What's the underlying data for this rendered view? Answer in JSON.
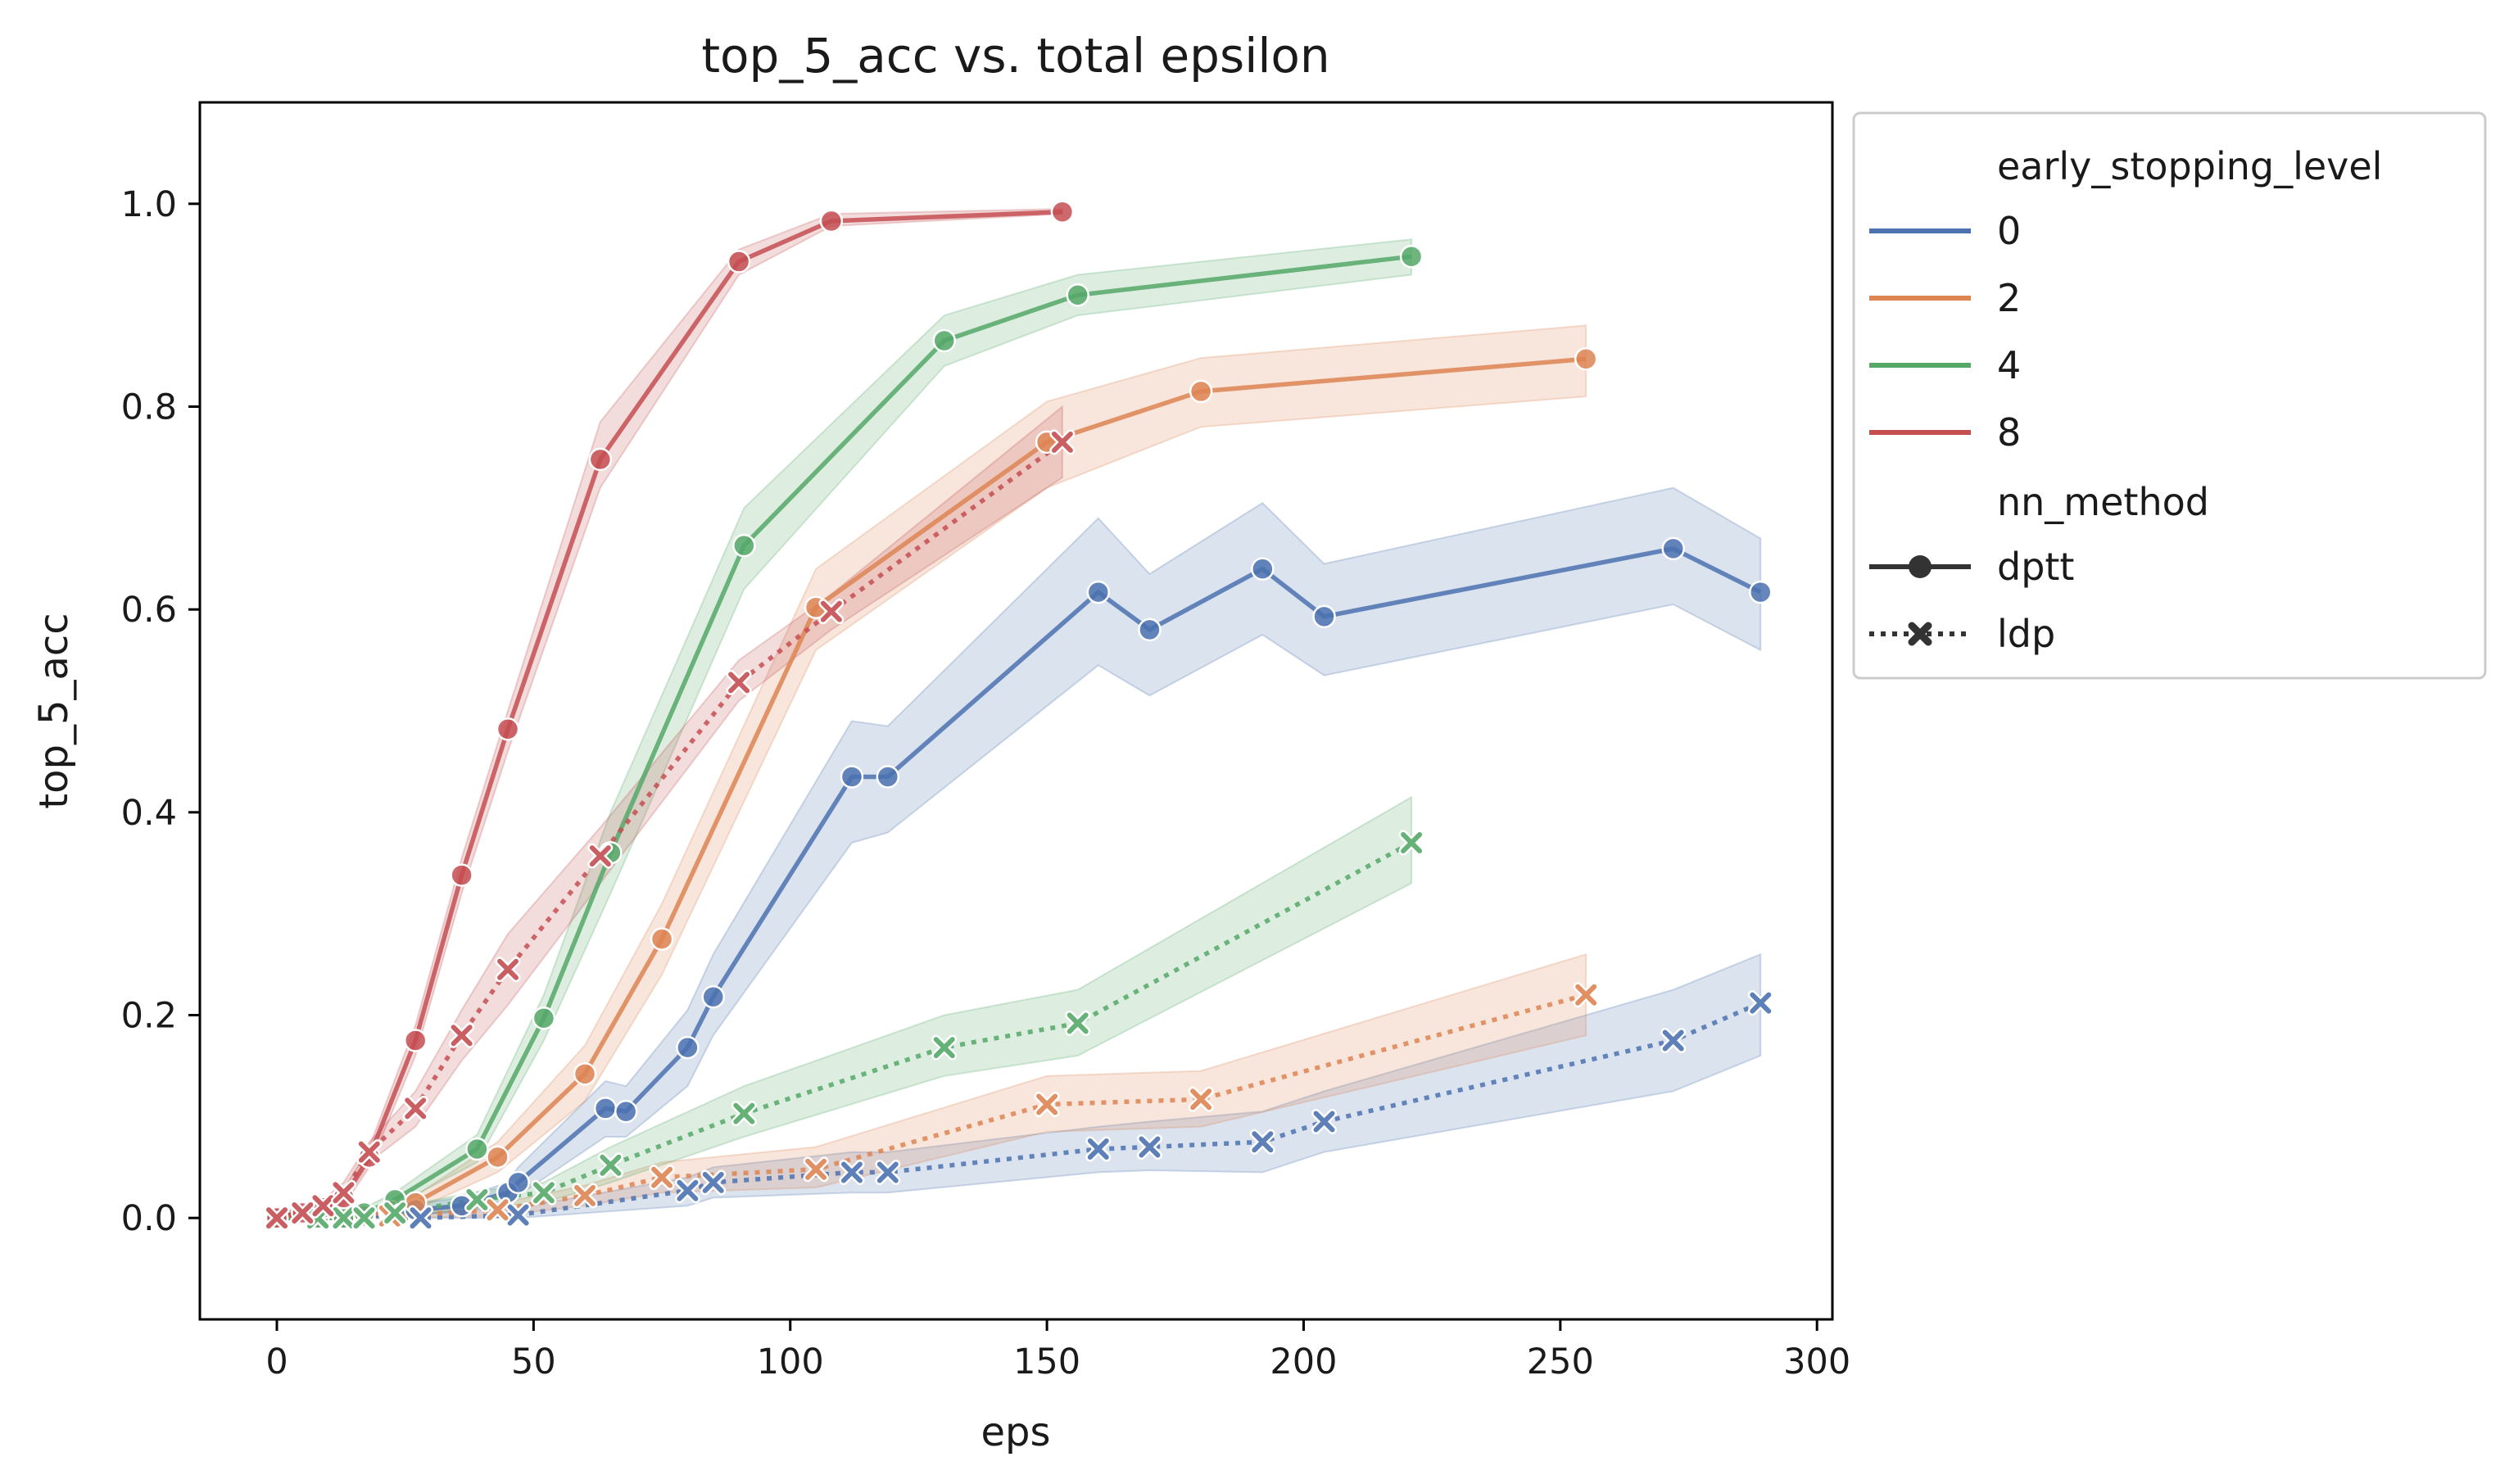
{
  "chart_data": {
    "type": "line",
    "title": "top_5_acc vs. total epsilon",
    "xlabel": "eps",
    "ylabel": "top_5_acc",
    "xlim": [
      -15,
      303
    ],
    "ylim": [
      -0.1,
      1.1
    ],
    "xticks": [
      0,
      50,
      100,
      150,
      200,
      250,
      300
    ],
    "yticks": [
      0.0,
      0.2,
      0.4,
      0.6,
      0.8,
      1.0
    ],
    "xtick_labels": [
      "0",
      "50",
      "100",
      "150",
      "200",
      "250",
      "300"
    ],
    "ytick_labels": [
      "0.0",
      "0.2",
      "0.4",
      "0.6",
      "0.8",
      "1.0"
    ],
    "grid": false,
    "legend": {
      "placement": "outside-right-top",
      "hue_title": "early_stopping_level",
      "hue_levels": [
        {
          "label": "0",
          "color": "#4c72b0"
        },
        {
          "label": "2",
          "color": "#dd8452"
        },
        {
          "label": "4",
          "color": "#55a868"
        },
        {
          "label": "8",
          "color": "#c44e52"
        }
      ],
      "style_title": "nn_method",
      "styles": [
        {
          "label": "dptt",
          "marker": "circle",
          "dash": "solid"
        },
        {
          "label": "ldp",
          "marker": "x",
          "dash": "dotted"
        }
      ]
    },
    "series": [
      {
        "early_stopping_level": "0",
        "nn_method": "dptt",
        "color": "#4c72b0",
        "marker": "circle",
        "dash": "solid",
        "x": [
          0,
          8,
          13,
          17,
          22,
          27,
          36,
          45,
          47,
          64,
          68,
          80,
          85,
          112,
          119,
          160,
          170,
          192,
          204,
          272,
          289
        ],
        "y": [
          0.0,
          0.0,
          0.0,
          0.0,
          0.005,
          0.008,
          0.012,
          0.025,
          0.035,
          0.108,
          0.105,
          0.168,
          0.218,
          0.435,
          0.435,
          0.617,
          0.58,
          0.64,
          0.593,
          0.66,
          0.617
        ],
        "ci_low": [
          0.0,
          0.0,
          0.0,
          0.0,
          0.0,
          0.003,
          0.006,
          0.015,
          0.022,
          0.08,
          0.08,
          0.13,
          0.18,
          0.37,
          0.38,
          0.545,
          0.515,
          0.575,
          0.535,
          0.605,
          0.56
        ],
        "ci_high": [
          0.005,
          0.005,
          0.005,
          0.005,
          0.01,
          0.014,
          0.02,
          0.035,
          0.05,
          0.135,
          0.13,
          0.205,
          0.26,
          0.49,
          0.485,
          0.69,
          0.635,
          0.705,
          0.645,
          0.72,
          0.67
        ]
      },
      {
        "early_stopping_level": "2",
        "nn_method": "dptt",
        "color": "#dd8452",
        "marker": "circle",
        "dash": "solid",
        "x": [
          0,
          8,
          13,
          17,
          22,
          27,
          43,
          60,
          75,
          105,
          150,
          180,
          255
        ],
        "y": [
          0.0,
          0.0,
          0.0,
          0.002,
          0.007,
          0.015,
          0.06,
          0.142,
          0.275,
          0.602,
          0.765,
          0.815,
          0.847
        ],
        "ci_low": [
          0.0,
          0.0,
          0.0,
          0.0,
          0.002,
          0.008,
          0.045,
          0.115,
          0.24,
          0.56,
          0.72,
          0.78,
          0.81
        ],
        "ci_high": [
          0.005,
          0.005,
          0.005,
          0.006,
          0.012,
          0.022,
          0.075,
          0.17,
          0.31,
          0.64,
          0.805,
          0.848,
          0.88
        ]
      },
      {
        "early_stopping_level": "4",
        "nn_method": "dptt",
        "color": "#55a868",
        "marker": "circle",
        "dash": "solid",
        "x": [
          0,
          8,
          13,
          17,
          23,
          39,
          52,
          65,
          91,
          130,
          156,
          221
        ],
        "y": [
          0.0,
          0.0,
          0.0,
          0.005,
          0.018,
          0.068,
          0.197,
          0.36,
          0.663,
          0.865,
          0.91,
          0.948
        ],
        "ci_low": [
          0.0,
          0.0,
          0.0,
          0.0,
          0.012,
          0.055,
          0.175,
          0.32,
          0.62,
          0.84,
          0.89,
          0.93
        ],
        "ci_high": [
          0.005,
          0.005,
          0.005,
          0.01,
          0.025,
          0.082,
          0.22,
          0.4,
          0.7,
          0.89,
          0.93,
          0.965
        ]
      },
      {
        "early_stopping_level": "8",
        "nn_method": "dptt",
        "color": "#c44e52",
        "marker": "circle",
        "dash": "solid",
        "x": [
          0,
          5,
          9,
          13,
          18,
          27,
          36,
          45,
          63,
          90,
          108,
          153
        ],
        "y": [
          0.0,
          0.005,
          0.01,
          0.02,
          0.06,
          0.175,
          0.338,
          0.482,
          0.748,
          0.943,
          0.983,
          0.992
        ],
        "ci_low": [
          0.0,
          0.0,
          0.005,
          0.012,
          0.05,
          0.16,
          0.32,
          0.46,
          0.72,
          0.93,
          0.978,
          0.99
        ],
        "ci_high": [
          0.005,
          0.01,
          0.015,
          0.028,
          0.07,
          0.19,
          0.355,
          0.5,
          0.785,
          0.955,
          0.99,
          0.995
        ]
      },
      {
        "early_stopping_level": "0",
        "nn_method": "ldp",
        "color": "#4c72b0",
        "marker": "x",
        "dash": "dotted",
        "x": [
          0,
          8,
          13,
          17,
          22,
          28,
          47,
          80,
          85,
          112,
          119,
          160,
          170,
          192,
          204,
          272,
          289
        ],
        "y": [
          0.0,
          0.0,
          0.0,
          0.0,
          0.0,
          0.0,
          0.003,
          0.027,
          0.035,
          0.045,
          0.045,
          0.068,
          0.07,
          0.075,
          0.095,
          0.175,
          0.212
        ],
        "ci_low": [
          0.0,
          0.0,
          0.0,
          0.0,
          0.0,
          0.0,
          0.0,
          0.012,
          0.02,
          0.025,
          0.025,
          0.045,
          0.047,
          0.045,
          0.065,
          0.125,
          0.16
        ],
        "ci_high": [
          0.005,
          0.005,
          0.005,
          0.005,
          0.005,
          0.005,
          0.01,
          0.04,
          0.05,
          0.065,
          0.065,
          0.09,
          0.095,
          0.105,
          0.125,
          0.225,
          0.26
        ]
      },
      {
        "early_stopping_level": "2",
        "nn_method": "ldp",
        "color": "#dd8452",
        "marker": "x",
        "dash": "dotted",
        "x": [
          0,
          8,
          13,
          17,
          22,
          43,
          60,
          75,
          105,
          150,
          180,
          255
        ],
        "y": [
          0.0,
          0.0,
          0.0,
          0.0,
          0.002,
          0.008,
          0.022,
          0.04,
          0.048,
          0.112,
          0.117,
          0.22
        ],
        "ci_low": [
          0.0,
          0.0,
          0.0,
          0.0,
          0.0,
          0.002,
          0.012,
          0.025,
          0.03,
          0.085,
          0.09,
          0.18
        ],
        "ci_high": [
          0.005,
          0.005,
          0.005,
          0.005,
          0.006,
          0.014,
          0.032,
          0.055,
          0.07,
          0.14,
          0.145,
          0.26
        ]
      },
      {
        "early_stopping_level": "4",
        "nn_method": "ldp",
        "color": "#55a868",
        "marker": "x",
        "dash": "dotted",
        "x": [
          0,
          8,
          13,
          17,
          23,
          39,
          52,
          65,
          91,
          130,
          156,
          221
        ],
        "y": [
          0.0,
          0.0,
          0.0,
          0.0,
          0.005,
          0.018,
          0.025,
          0.052,
          0.103,
          0.168,
          0.192,
          0.37
        ],
        "ci_low": [
          0.0,
          0.0,
          0.0,
          0.0,
          0.0,
          0.01,
          0.015,
          0.035,
          0.08,
          0.14,
          0.16,
          0.33
        ],
        "ci_high": [
          0.005,
          0.005,
          0.005,
          0.005,
          0.01,
          0.026,
          0.035,
          0.07,
          0.13,
          0.2,
          0.225,
          0.415
        ]
      },
      {
        "early_stopping_level": "8",
        "nn_method": "ldp",
        "color": "#c44e52",
        "marker": "x",
        "dash": "dotted",
        "x": [
          0,
          5,
          9,
          13,
          18,
          27,
          36,
          45,
          63,
          90,
          108,
          153
        ],
        "y": [
          0.0,
          0.005,
          0.012,
          0.025,
          0.065,
          0.108,
          0.18,
          0.245,
          0.357,
          0.528,
          0.598,
          0.765
        ],
        "ci_low": [
          0.0,
          0.0,
          0.006,
          0.015,
          0.055,
          0.09,
          0.155,
          0.21,
          0.33,
          0.51,
          0.58,
          0.73
        ],
        "ci_high": [
          0.005,
          0.01,
          0.018,
          0.035,
          0.075,
          0.125,
          0.205,
          0.28,
          0.385,
          0.55,
          0.615,
          0.8
        ]
      }
    ]
  }
}
